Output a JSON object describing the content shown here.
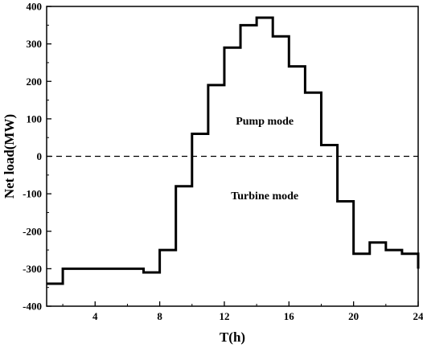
{
  "chart_data": {
    "type": "line",
    "step": true,
    "xlabel": "T(h)",
    "ylabel": "Net load(MW)",
    "xlim": [
      1,
      24
    ],
    "ylim": [
      -400,
      400
    ],
    "xticks": [
      4,
      8,
      12,
      16,
      20,
      24
    ],
    "yticks": [
      -400,
      -300,
      -200,
      -100,
      0,
      100,
      200,
      300,
      400
    ],
    "grid": false,
    "reference_line": {
      "y": 0,
      "style": "dashed"
    },
    "annotations": [
      {
        "text": "Pump mode",
        "x": 14.5,
        "y": 85
      },
      {
        "text": "Turbine mode",
        "x": 14.5,
        "y": -115
      }
    ],
    "series": [
      {
        "x_edges": [
          1,
          2,
          3,
          4,
          5,
          6,
          7,
          8,
          9,
          10,
          11,
          12,
          13,
          14,
          15,
          16,
          17,
          18,
          19,
          20,
          21,
          22,
          23,
          24
        ],
        "values": [
          -340,
          -300,
          -300,
          -300,
          -300,
          -300,
          -310,
          -250,
          -80,
          60,
          190,
          290,
          350,
          370,
          320,
          240,
          170,
          30,
          -120,
          -260,
          -230,
          -250,
          -260,
          -300
        ],
        "color": "#000000"
      }
    ]
  }
}
